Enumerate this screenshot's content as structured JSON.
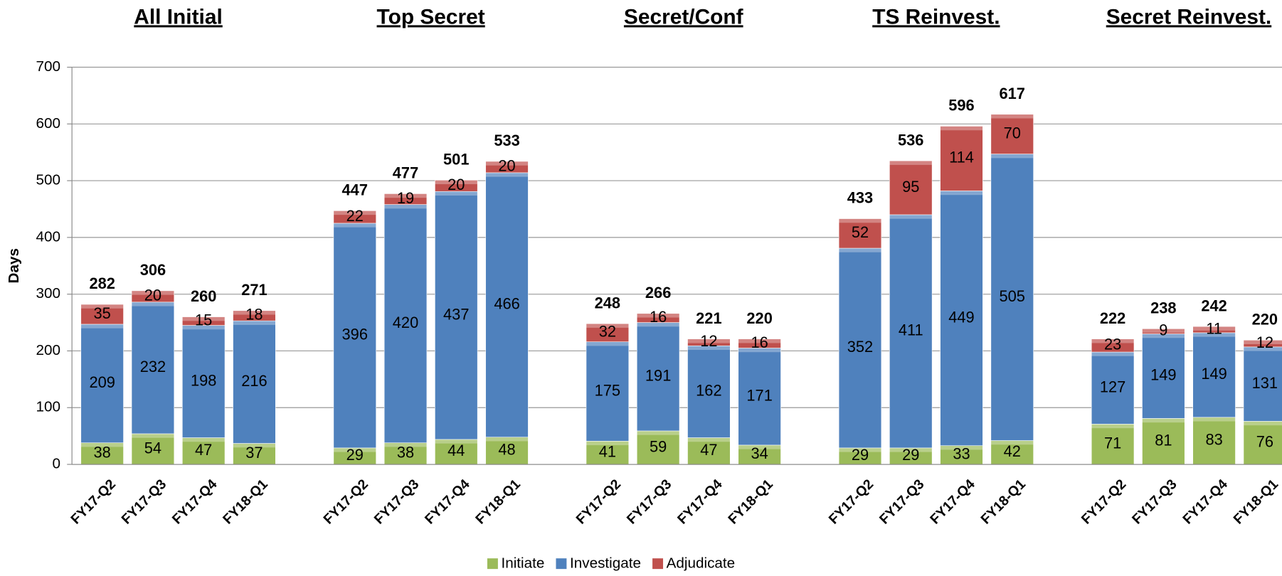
{
  "chart_data": {
    "type": "stacked_bar",
    "y_label": "Days",
    "groups": [
      "All Initial",
      "Top Secret",
      "Secret/Conf",
      "TS Reinvest.",
      "Secret Reinvest."
    ],
    "categories": [
      [
        "FY17-Q2",
        "FY17-Q3",
        "FY17-Q4",
        "FY18-Q1"
      ],
      [
        "FY17-Q2",
        "FY17-Q3",
        "FY17-Q4",
        "FY18-Q1"
      ],
      [
        "FY17-Q2",
        "FY17-Q3",
        "FY17-Q4",
        "FY18-Q1"
      ],
      [
        "FY17-Q2",
        "FY17-Q3",
        "FY17-Q4",
        "FY18-Q1"
      ],
      [
        "FY17-Q2",
        "FY17-Q3",
        "FY17-Q4",
        "FY18-Q1"
      ]
    ],
    "series": [
      {
        "name": "Initiate",
        "color": "#9bbb59",
        "values": [
          [
            38,
            54,
            47,
            37
          ],
          [
            29,
            38,
            44,
            48
          ],
          [
            41,
            59,
            47,
            34
          ],
          [
            29,
            29,
            33,
            42
          ],
          [
            71,
            81,
            83,
            76
          ]
        ]
      },
      {
        "name": "Investigate",
        "color": "#4f81bd",
        "values": [
          [
            209,
            232,
            198,
            216
          ],
          [
            396,
            420,
            437,
            466
          ],
          [
            175,
            191,
            162,
            171
          ],
          [
            352,
            411,
            449,
            505
          ],
          [
            127,
            149,
            149,
            131
          ]
        ]
      },
      {
        "name": "Adjudicate",
        "color": "#c0504d",
        "values": [
          [
            35,
            20,
            15,
            18
          ],
          [
            22,
            19,
            20,
            20
          ],
          [
            32,
            16,
            12,
            16
          ],
          [
            52,
            95,
            114,
            70
          ],
          [
            23,
            9,
            11,
            12
          ]
        ]
      }
    ],
    "totals": [
      [
        282,
        306,
        260,
        271
      ],
      [
        447,
        477,
        501,
        533
      ],
      [
        248,
        266,
        221,
        220
      ],
      [
        433,
        536,
        596,
        617
      ],
      [
        222,
        238,
        242,
        220
      ]
    ],
    "ylim": [
      0,
      700
    ],
    "yticks": [
      0,
      100,
      200,
      300,
      400,
      500,
      600,
      700
    ],
    "grid": true,
    "legend": "bottom"
  }
}
